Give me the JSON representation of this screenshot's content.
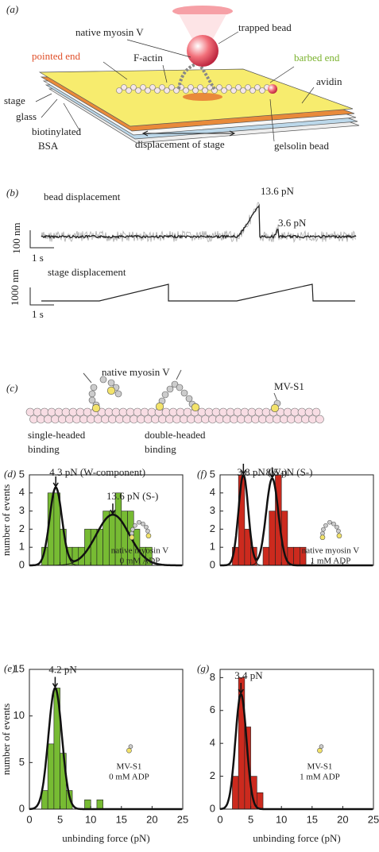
{
  "figure_a": {
    "panel_label": "(a)",
    "native_myosin": "native myosin V",
    "trapped_bead": "trapped bead",
    "pointed_end": "pointed end",
    "f_actin": "F-actin",
    "barbed_end": "barbed end",
    "avidin": "avidin",
    "stage": "stage",
    "glass": "glass",
    "biotinylated_bsa": [
      "biotinylated",
      "BSA"
    ],
    "displacement": "displacement of stage",
    "gelsolin": "gelsolin bead"
  },
  "figure_b": {
    "panel_label": "(b)",
    "bead_title": "bead displacement",
    "force_1": "13.6 pN",
    "force_2": "3.6 pN",
    "bead_scale_y": "100 nm",
    "bead_scale_x": "1 s",
    "stage_title": "stage displacement",
    "stage_scale_y": "1000 nm",
    "stage_scale_x": "1 s"
  },
  "figure_c": {
    "panel_label": "(c)",
    "native": "native myosin V",
    "mvs1": "MV-S1",
    "single": [
      "single-headed",
      "binding"
    ],
    "double": [
      "double-headed",
      "binding"
    ]
  },
  "chart_data": [
    {
      "type": "histogram",
      "panel_label": "(d)",
      "color": "#77bb33",
      "bins": [
        2,
        3,
        4,
        5,
        6,
        7,
        8,
        9,
        10,
        11,
        12,
        13,
        14,
        15,
        16,
        17,
        18,
        19,
        20
      ],
      "values": [
        1,
        4,
        4,
        2,
        1,
        1,
        1,
        2,
        2,
        2,
        3,
        3,
        4,
        3,
        3,
        2,
        1,
        1
      ],
      "xlim": [
        0,
        25
      ],
      "xticks": [
        0,
        5,
        10,
        15,
        20,
        25
      ],
      "xtick_labels": false,
      "ylim": [
        0,
        5
      ],
      "yticks": [
        0,
        1,
        2,
        3,
        4,
        5
      ],
      "ylabel": "number of events",
      "fits": [
        {
          "mean": 4.3,
          "sd": 1.0,
          "peak": 4.3
        },
        {
          "mean": 13.6,
          "sd": 2.7,
          "peak": 2.8
        }
      ],
      "annotations": [
        "4.3 pN (W-component)",
        "13.6 pN (S-)"
      ],
      "inset": [
        "native myosin V",
        "0 mM ADP"
      ]
    },
    {
      "type": "histogram",
      "panel_label": "(f)",
      "color": "#cc2a1e",
      "bins": [
        2,
        3,
        4,
        5,
        6,
        7,
        8,
        9,
        10,
        11,
        12,
        13,
        14
      ],
      "values": [
        1,
        5,
        2,
        1,
        0,
        1,
        3,
        5,
        3,
        1,
        1,
        1
      ],
      "xlim": [
        0,
        25
      ],
      "xticks": [
        0,
        5,
        10,
        15,
        20,
        25
      ],
      "xtick_labels": false,
      "ylim": [
        0,
        5
      ],
      "yticks": [
        0,
        1,
        2,
        3,
        4,
        5
      ],
      "fits": [
        {
          "mean": 3.8,
          "sd": 0.8,
          "peak": 5
        },
        {
          "mean": 8.5,
          "sd": 1.0,
          "peak": 4.8
        }
      ],
      "annotations": [
        "3.8 pN (W-)",
        "8.5 pN (S-)"
      ],
      "inset": [
        "native myosin V",
        "1 mM ADP"
      ]
    },
    {
      "type": "histogram",
      "panel_label": "(e)",
      "color": "#77bb33",
      "bins": [
        2,
        3,
        4,
        5,
        6,
        7,
        8,
        9,
        10,
        11,
        12
      ],
      "values": [
        2,
        7,
        13,
        6,
        2,
        0,
        0,
        1,
        0,
        1
      ],
      "xlim": [
        0,
        25
      ],
      "xticks": [
        0,
        5,
        10,
        15,
        20,
        25
      ],
      "xtick_labels": true,
      "ylim": [
        0,
        15
      ],
      "yticks": [
        0,
        5,
        10,
        15
      ],
      "ylabel": "number of events",
      "xlabel": "unbinding force (pN)",
      "fits": [
        {
          "mean": 4.2,
          "sd": 1.1,
          "peak": 13
        }
      ],
      "annotations": [
        "4.2 pN"
      ],
      "inset": [
        "MV-S1",
        "0 mM ADP"
      ]
    },
    {
      "type": "histogram",
      "panel_label": "(g)",
      "color": "#cc2a1e",
      "bins": [
        2,
        3,
        4,
        5,
        6,
        7
      ],
      "values": [
        2,
        8,
        5,
        2,
        1
      ],
      "xlim": [
        0,
        25
      ],
      "xticks": [
        0,
        5,
        10,
        15,
        20,
        25
      ],
      "xtick_labels": true,
      "ylim": [
        0,
        8.5
      ],
      "yticks": [
        0,
        2,
        4,
        6,
        8
      ],
      "xlabel": "unbinding force (pN)",
      "fits": [
        {
          "mean": 3.4,
          "sd": 0.9,
          "peak": 7
        }
      ],
      "annotations": [
        "3.4 pN"
      ],
      "inset": [
        "MV-S1",
        "1 mM ADP"
      ]
    }
  ]
}
